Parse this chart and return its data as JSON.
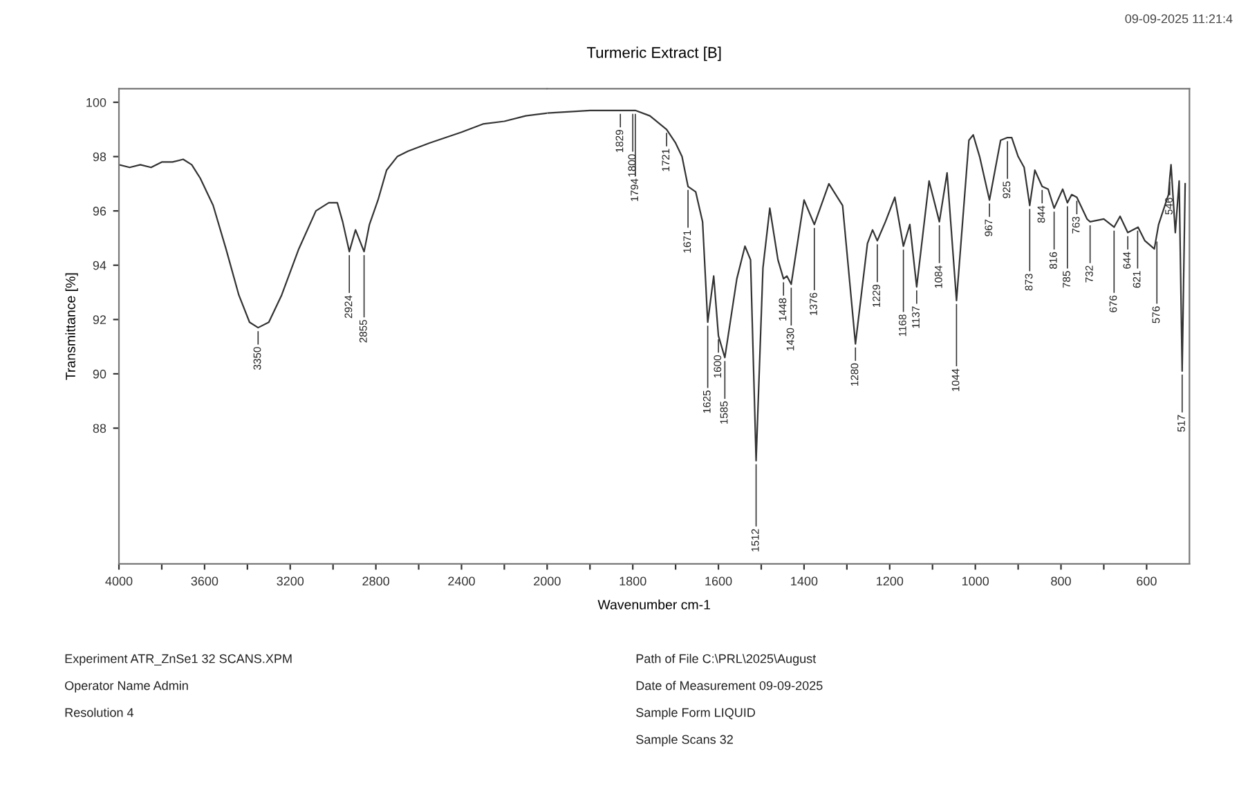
{
  "chart_data": [
    {
      "type": "line",
      "ylabel": "Transmittance [%]",
      "series": [
        {
          "color": "#333333",
          "x": [
            4000,
            3950,
            3900,
            3850,
            3800,
            3750,
            3700,
            3660,
            3620,
            3560,
            3500,
            3440,
            3390,
            3350,
            3300,
            3240,
            3160,
            3080,
            3020,
            2980,
            2955,
            2924,
            2895,
            2855,
            2830,
            2790,
            2750,
            2700,
            2650,
            2550,
            2400,
            2300,
            2200,
            2100,
            2000
          ],
          "values": [
            97.7,
            97.6,
            97.7,
            97.6,
            97.8,
            97.8,
            97.9,
            97.7,
            97.2,
            96.2,
            94.6,
            92.9,
            91.9,
            91.7,
            91.9,
            92.9,
            94.6,
            96.0,
            96.3,
            96.3,
            95.6,
            94.5,
            95.3,
            94.5,
            95.5,
            96.4,
            97.5,
            98.0,
            98.2,
            98.5,
            98.9,
            99.2,
            99.3,
            99.5,
            99.6
          ]
        }
      ],
      "xlim": [
        4000,
        2000
      ],
      "xticks": [
        4000,
        {
          "value": 3800,
          "label": null
        },
        3600,
        {
          "value": 3400,
          "label": null
        },
        3200,
        {
          "value": 3000,
          "label": null
        },
        2800,
        {
          "value": 2600,
          "label": null
        },
        2400,
        {
          "value": 2200,
          "label": null
        },
        2000
      ],
      "ylim": [
        83,
        100.5
      ],
      "yticks": [
        88,
        90,
        92,
        94,
        96,
        98,
        100
      ],
      "annotations": [
        "09-09-2025 11:21:4",
        "Experiment ATR_ZnSe1 32 SCANS.XPM",
        "Operator Name Admin",
        "Resolution 4",
        "Path of File C:\\PRL\\2025\\August",
        "Date of Measurement 09-09-2025",
        "Sample Form LIQUID",
        "Sample Scans 32",
        {
          "text": "3350",
          "x": 3350,
          "y": 91.7
        },
        {
          "text": "2924",
          "x": 2924,
          "y": 94.5
        },
        {
          "text": "2855",
          "x": 2855,
          "y": 94.5
        }
      ]
    },
    {
      "type": "line",
      "title": "Turmeric Extract [B]",
      "xlabel": "Wavenumber cm-1",
      "series": [
        {
          "color": "#333333",
          "x": [
            2000,
            1900,
            1829,
            1800,
            1794,
            1760,
            1721,
            1700,
            1685,
            1671,
            1653,
            1637,
            1625,
            1611,
            1600,
            1585,
            1557,
            1538,
            1525,
            1512,
            1496,
            1480,
            1461,
            1448,
            1440,
            1430,
            1400,
            1376,
            1342,
            1310,
            1280,
            1252,
            1240,
            1229,
            1210,
            1188,
            1168,
            1153,
            1137,
            1108,
            1084,
            1066,
            1044,
            1015,
            1005,
            990,
            967,
            941,
            925,
            915,
            900,
            886,
            873,
            861,
            844,
            830,
            816,
            796,
            785,
            775,
            763,
            739,
            732,
            700,
            676,
            662,
            644,
            620,
            604,
            582,
            572,
            549,
            546,
            543,
            533,
            524,
            517,
            510
          ],
          "values": [
            99.6,
            99.7,
            99.7,
            99.7,
            99.7,
            99.5,
            99.0,
            98.5,
            98.0,
            96.9,
            96.7,
            95.6,
            91.9,
            93.6,
            91.4,
            90.6,
            93.5,
            94.7,
            94.2,
            86.8,
            93.9,
            96.1,
            94.2,
            93.5,
            93.6,
            93.3,
            96.4,
            95.5,
            97.0,
            96.2,
            91.1,
            94.8,
            95.3,
            94.9,
            95.6,
            96.5,
            94.7,
            95.5,
            93.2,
            97.1,
            95.6,
            97.4,
            92.7,
            98.6,
            98.8,
            98.0,
            96.4,
            98.6,
            98.7,
            98.7,
            98.0,
            97.6,
            96.2,
            97.5,
            96.9,
            96.8,
            96.1,
            96.8,
            96.3,
            96.6,
            96.5,
            95.7,
            95.6,
            95.7,
            95.4,
            95.8,
            95.2,
            95.4,
            94.9,
            94.6,
            95.5,
            96.6,
            97.2,
            97.7,
            95.2,
            97.1,
            90.1,
            97.0
          ]
        }
      ],
      "xlim": [
        2000,
        500
      ],
      "xticks": [
        {
          "value": 1900,
          "label": null
        },
        1800,
        {
          "value": 1700,
          "label": null
        },
        1600,
        {
          "value": 1500,
          "label": null
        },
        1400,
        {
          "value": 1300,
          "label": null
        },
        1200,
        {
          "value": 1100,
          "label": null
        },
        1000,
        {
          "value": 900,
          "label": null
        },
        800,
        {
          "value": 700,
          "label": null
        },
        600
      ],
      "ylim": [
        83,
        100.5
      ],
      "tick_labels": "x",
      "annotations": [
        {
          "text": "1829",
          "x": 1829,
          "y": 99.7
        },
        {
          "text": "1800",
          "x": 1800,
          "y": 99.7
        },
        {
          "text": "1794",
          "x": 1794,
          "y": 99.7
        },
        {
          "text": "1721",
          "x": 1721,
          "y": 99.0
        },
        {
          "text": "1671",
          "x": 1671,
          "y": 96.9
        },
        {
          "text": "1625",
          "x": 1625,
          "y": 91.9
        },
        {
          "text": "1600",
          "x": 1600,
          "y": 91.4
        },
        {
          "text": "1585",
          "x": 1585,
          "y": 90.6
        },
        {
          "text": "1512",
          "x": 1512,
          "y": 86.8
        },
        {
          "text": "1448",
          "x": 1448,
          "y": 93.5
        },
        {
          "text": "1430",
          "x": 1430,
          "y": 93.3
        },
        {
          "text": "1376",
          "x": 1376,
          "y": 95.5
        },
        {
          "text": "1280",
          "x": 1280,
          "y": 91.1
        },
        {
          "text": "1229",
          "x": 1229,
          "y": 94.9
        },
        {
          "text": "1168",
          "x": 1168,
          "y": 94.7
        },
        {
          "text": "1137",
          "x": 1137,
          "y": 93.2
        },
        {
          "text": "1084",
          "x": 1084,
          "y": 95.6
        },
        {
          "text": "1044",
          "x": 1044,
          "y": 92.7
        },
        {
          "text": "967",
          "x": 967,
          "y": 96.4
        },
        {
          "text": "925",
          "x": 925,
          "y": 98.7
        },
        {
          "text": "873",
          "x": 873,
          "y": 96.2
        },
        {
          "text": "844",
          "x": 844,
          "y": 96.9
        },
        {
          "text": "816",
          "x": 816,
          "y": 96.1
        },
        {
          "text": "785",
          "x": 785,
          "y": 96.3
        },
        {
          "text": "763",
          "x": 763,
          "y": 96.5
        },
        {
          "text": "732",
          "x": 732,
          "y": 95.6
        },
        {
          "text": "676",
          "x": 676,
          "y": 95.4
        },
        {
          "text": "644",
          "x": 644,
          "y": 95.2
        },
        {
          "text": "621",
          "x": 621,
          "y": 95.4
        },
        {
          "text": "576",
          "x": 576,
          "y": 95.0
        },
        {
          "text": "546",
          "x": 546,
          "y": 97.2
        },
        {
          "text": "517",
          "x": 517,
          "y": 90.1
        }
      ]
    }
  ]
}
